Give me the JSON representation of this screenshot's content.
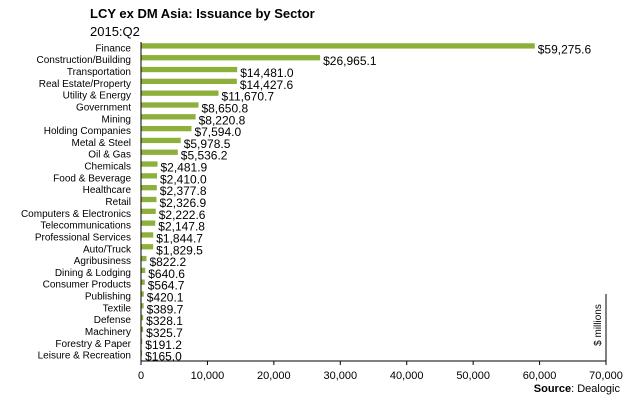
{
  "chart_data": {
    "type": "bar",
    "orientation": "horizontal",
    "title": "LCY ex DM Asia:  Issuance by Sector",
    "subtitle": "2015:Q2",
    "unit_label": "$ millions",
    "source_label": "Source",
    "source_value": ": Dealogic",
    "bar_color": "#8db03c",
    "xlim": [
      0,
      70000
    ],
    "x_ticks": [
      0,
      10000,
      20000,
      30000,
      40000,
      50000,
      60000,
      70000
    ],
    "x_tick_labels": [
      "0",
      "10,000",
      "20,000",
      "30,000",
      "40,000",
      "50,000",
      "60,000",
      "70,000"
    ],
    "grid": false,
    "categories": [
      "Finance",
      "Construction/Building",
      "Transportation",
      "Real Estate/Property",
      "Utility & Energy",
      "Government",
      "Mining",
      "Holding Companies",
      "Metal & Steel",
      "Oil & Gas",
      "Chemicals",
      "Food & Beverage",
      "Healthcare",
      "Retail",
      "Computers & Electronics",
      "Telecommunications",
      "Professional Services",
      "Auto/Truck",
      "Agribusiness",
      "Dining & Lodging",
      "Consumer Products",
      "Publishing",
      "Textile",
      "Defense",
      "Machinery",
      "Forestry & Paper",
      "Leisure & Recreation"
    ],
    "values": [
      59275.6,
      26965.1,
      14481.0,
      14427.6,
      11670.7,
      8650.8,
      8220.8,
      7594.0,
      5978.5,
      5536.2,
      2481.9,
      2410.0,
      2377.8,
      2326.9,
      2222.6,
      2147.8,
      1844.7,
      1829.5,
      822.2,
      640.6,
      564.7,
      420.1,
      389.7,
      328.1,
      325.7,
      191.2,
      165.0
    ],
    "value_labels": [
      "$59,275.6",
      "$26,965.1",
      "$14,481.0",
      "$14,427.6",
      "$11,670.7",
      "$8,650.8",
      "$8,220.8",
      "$7,594.0",
      "$5,978.5",
      "$5,536.2",
      "$2,481.9",
      "$2,410.0",
      "$2,377.8",
      "$2,326.9",
      "$2,222.6",
      "$2,147.8",
      "$1,844.7",
      "$1,829.5",
      "$822.2",
      "$640.6",
      "$564.7",
      "$420.1",
      "$389.7",
      "$328.1",
      "$325.7",
      "$191.2",
      "$165.0"
    ]
  }
}
